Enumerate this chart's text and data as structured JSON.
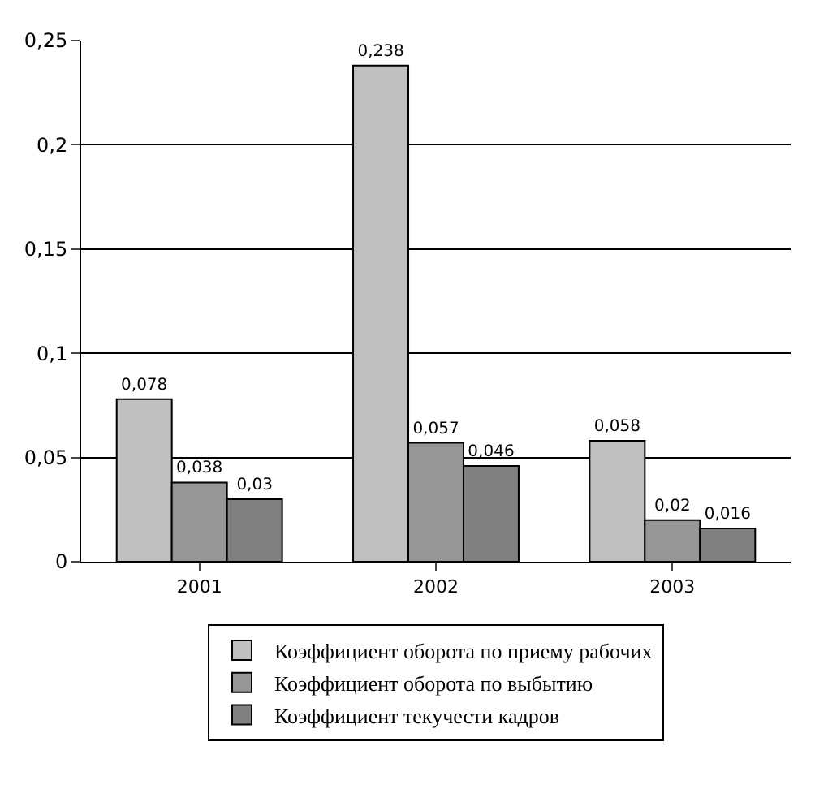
{
  "chart_data": {
    "type": "bar",
    "categories": [
      "2001",
      "2002",
      "2003"
    ],
    "series": [
      {
        "name": "Коэффициент оборота по приему рабочих",
        "color": "#c0c0c0",
        "values": [
          0.078,
          0.238,
          0.058
        ],
        "value_labels": [
          "0,078",
          "0,238",
          "0,058"
        ]
      },
      {
        "name": "Коэффициент оборота по выбытию",
        "color": "#969696",
        "values": [
          0.038,
          0.057,
          0.02
        ],
        "value_labels": [
          "0,038",
          "0,057",
          "0,02"
        ]
      },
      {
        "name": "Коэффициент текучести кадров",
        "color": "#808080",
        "values": [
          0.03,
          0.046,
          0.016
        ],
        "value_labels": [
          "0,03",
          "0,046",
          "0,016"
        ]
      }
    ],
    "ylim": [
      0,
      0.25
    ],
    "yticks": [
      {
        "value": 0,
        "label": "0"
      },
      {
        "value": 0.05,
        "label": "0,05"
      },
      {
        "value": 0.1,
        "label": "0,1"
      },
      {
        "value": 0.15,
        "label": "0,15"
      },
      {
        "value": 0.2,
        "label": "0,2"
      },
      {
        "value": 0.25,
        "label": "0,25"
      }
    ],
    "grid": "y",
    "legend": "bottom"
  }
}
